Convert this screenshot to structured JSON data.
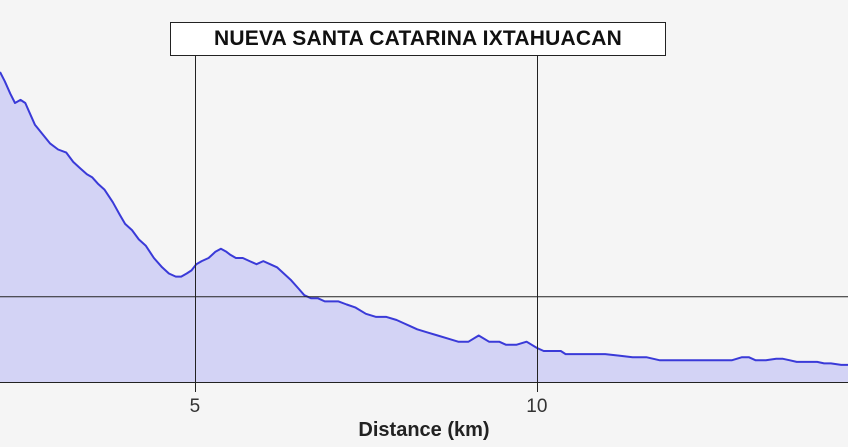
{
  "chart_data": {
    "type": "area",
    "title": "NUEVA SANTA CATARINA IXTAHUACAN",
    "xlabel": "Distance (km)",
    "ylabel": "",
    "xlim": [
      2.15,
      14.55
    ],
    "ylim": [
      0,
      100
    ],
    "x_ticks": [
      5,
      10
    ],
    "x_tick_labels": [
      "5",
      "10"
    ],
    "y_gridlines": [
      27.5
    ],
    "y_tick_labels": [],
    "grid": "vertical at x ticks, one horizontal line",
    "legend": "none",
    "series": [
      {
        "x": [
          2.15,
          2.22,
          2.3,
          2.37,
          2.45,
          2.52,
          2.58,
          2.66,
          2.77,
          2.88,
          3.0,
          3.12,
          3.22,
          3.32,
          3.42,
          3.5,
          3.58,
          3.68,
          3.8,
          3.9,
          3.98,
          4.08,
          4.18,
          4.28,
          4.4,
          4.52,
          4.62,
          4.72,
          4.8,
          4.88,
          4.95,
          5.02,
          5.1,
          5.2,
          5.3,
          5.38,
          5.46,
          5.52,
          5.6,
          5.7,
          5.8,
          5.9,
          6.0,
          6.1,
          6.2,
          6.3,
          6.4,
          6.52,
          6.6,
          6.7,
          6.8,
          6.9,
          7.0,
          7.1,
          7.22,
          7.35,
          7.5,
          7.65,
          7.8,
          7.95,
          8.05,
          8.15,
          8.25,
          8.4,
          8.55,
          8.7,
          8.85,
          9.0,
          9.15,
          9.3,
          9.45,
          9.55,
          9.62,
          9.7,
          9.85,
          10.0,
          10.1,
          10.2,
          10.27,
          10.35,
          10.42,
          10.55,
          10.7,
          10.85,
          11.0,
          11.2,
          11.4,
          11.6,
          11.8,
          12.0,
          12.2,
          12.4,
          12.55,
          12.7,
          12.85,
          13.0,
          13.1,
          13.2,
          13.35,
          13.5,
          13.6,
          13.7,
          13.8,
          13.9,
          14.0,
          14.1,
          14.2,
          14.3,
          14.45,
          14.55
        ],
        "values": [
          100,
          97,
          93,
          90,
          91,
          90,
          87,
          83,
          80,
          77,
          75,
          74,
          71,
          69,
          67,
          66,
          64,
          62,
          58,
          54,
          51,
          49,
          46,
          44,
          40,
          37,
          35,
          34,
          34,
          35,
          36,
          38,
          39,
          40,
          42,
          43,
          42,
          41,
          40,
          40,
          39,
          38,
          39,
          38,
          37,
          35,
          33,
          30,
          28,
          27,
          27,
          26,
          26,
          26,
          25,
          24,
          22,
          21,
          21,
          20,
          19,
          18,
          17,
          16,
          15,
          14,
          13,
          13,
          15,
          13,
          13,
          12,
          12,
          12,
          13,
          11,
          10,
          10,
          10,
          10,
          9,
          9,
          9,
          9,
          9,
          8.5,
          8,
          8,
          7,
          7,
          7,
          7,
          7,
          7,
          7,
          8,
          8,
          7,
          7,
          7.5,
          7.5,
          7,
          6.5,
          6.5,
          6.5,
          6.5,
          6,
          6,
          5.5,
          5.5
        ]
      }
    ]
  },
  "colors": {
    "line": "#3a3ad8",
    "fill": "#d3d3f5",
    "grid": "#222222",
    "background": "#f5f5f5"
  }
}
